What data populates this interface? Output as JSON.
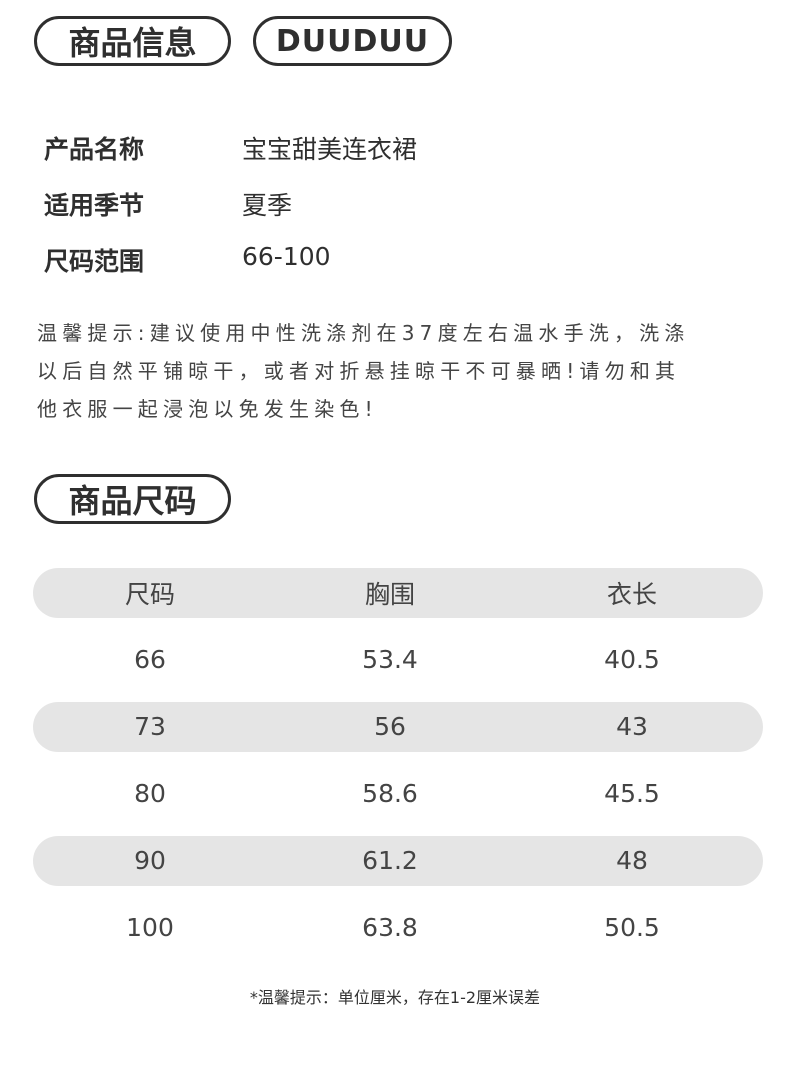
{
  "header": {
    "title": "商品信息",
    "brand": "DUUDUU"
  },
  "info": [
    {
      "label": "产品名称",
      "value": "宝宝甜美连衣裙"
    },
    {
      "label": "适用季节",
      "value": "夏季"
    },
    {
      "label": "尺码范围",
      "value": "66-100"
    }
  ],
  "notice": [
    "温馨提示:建议使用中性洗涤剂在37度左右温水手洗，洗涤",
    "以后自然平铺晾干，或者对折悬挂晾干不可暴晒!请勿和其",
    "他衣服一起浸泡以免发生染色!"
  ],
  "size_section": {
    "title": "商品尺码"
  },
  "table": {
    "headers": [
      "尺码",
      "胸围",
      "衣长"
    ],
    "rows": [
      [
        "66",
        "53.4",
        "40.5"
      ],
      [
        "73",
        "56",
        "43"
      ],
      [
        "80",
        "58.6",
        "45.5"
      ],
      [
        "90",
        "61.2",
        "48"
      ],
      [
        "100",
        "63.8",
        "50.5"
      ]
    ]
  },
  "footnote": "*温馨提示：单位厘米，存在1-2厘米误差"
}
